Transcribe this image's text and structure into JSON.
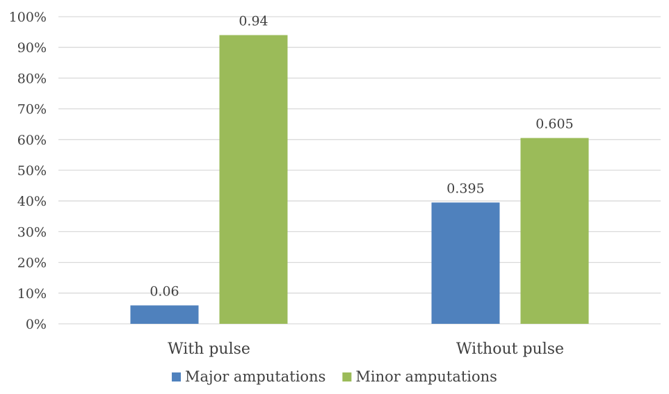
{
  "chart_data": {
    "type": "bar",
    "categories": [
      "With pulse",
      "Without pulse"
    ],
    "series": [
      {
        "name": "Major amputations",
        "values": [
          0.06,
          0.395
        ],
        "labels": [
          "0.06",
          "0.395"
        ],
        "color": "#4f81bd"
      },
      {
        "name": "Minor amputations",
        "values": [
          0.94,
          0.605
        ],
        "labels": [
          "0.94",
          "0.605"
        ],
        "color": "#9bbb59"
      }
    ],
    "ylim": [
      0,
      1
    ],
    "yticks": [
      {
        "value": 0,
        "label": "0%"
      },
      {
        "value": 0.1,
        "label": "10%"
      },
      {
        "value": 0.2,
        "label": "20%"
      },
      {
        "value": 0.3,
        "label": "30%"
      },
      {
        "value": 0.4,
        "label": "40%"
      },
      {
        "value": 0.5,
        "label": "50%"
      },
      {
        "value": 0.6,
        "label": "60%"
      },
      {
        "value": 0.7,
        "label": "70%"
      },
      {
        "value": 0.8,
        "label": "80%"
      },
      {
        "value": 0.9,
        "label": "90%"
      },
      {
        "value": 1.0,
        "label": "100%"
      }
    ],
    "grid": true,
    "legend_position": "bottom",
    "gridline_color": "#d9d9d9",
    "text_color": "#404040"
  }
}
